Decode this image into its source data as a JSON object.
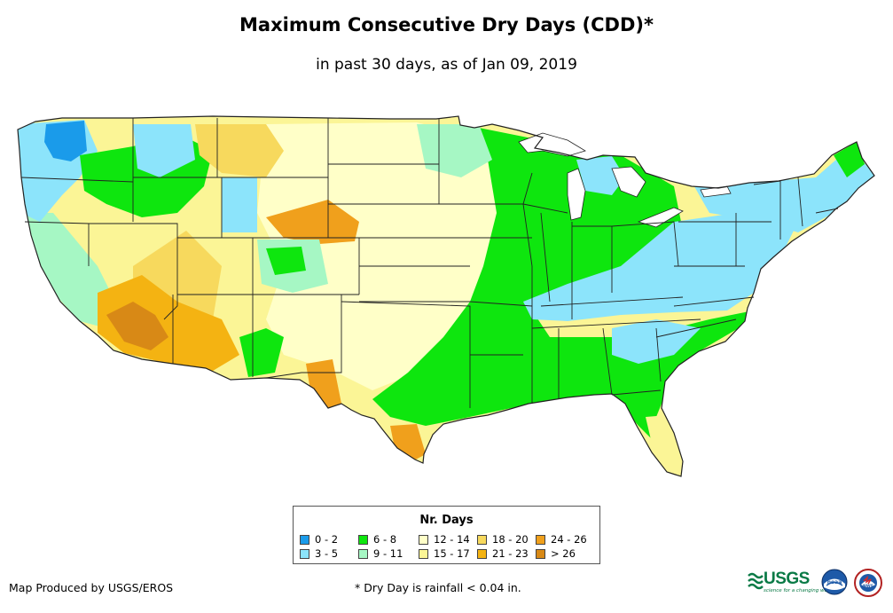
{
  "title": "Maximum Consecutive Dry Days (CDD)*",
  "subtitle": "in past 30 days, as of Jan 09, 2019",
  "legend": {
    "title": "Nr. Days",
    "items": [
      {
        "label": "0 - 2",
        "color": "#1a9bea"
      },
      {
        "label": "3 - 5",
        "color": "#8ce4fb"
      },
      {
        "label": "6 - 8",
        "color": "#0ee60e"
      },
      {
        "label": "9 - 11",
        "color": "#a6f7c4"
      },
      {
        "label": "12 - 14",
        "color": "#ffffc8"
      },
      {
        "label": "15 - 17",
        "color": "#fbf596"
      },
      {
        "label": "18 - 20",
        "color": "#f7d95d"
      },
      {
        "label": "21 - 23",
        "color": "#f4b312"
      },
      {
        "label": "24 - 26",
        "color": "#f0a01c"
      },
      {
        "label": "> 26",
        "color": "#d88916"
      }
    ]
  },
  "credit": "Map Produced by USGS/EROS",
  "footnote": "* Dry Day is rainfall < 0.04 in.",
  "logos": {
    "usgs": "USGS",
    "usgs_tagline": "science for a changing world",
    "noaa": "noaa",
    "nws": "NWS"
  },
  "colors": {
    "state_border": "#222222"
  }
}
